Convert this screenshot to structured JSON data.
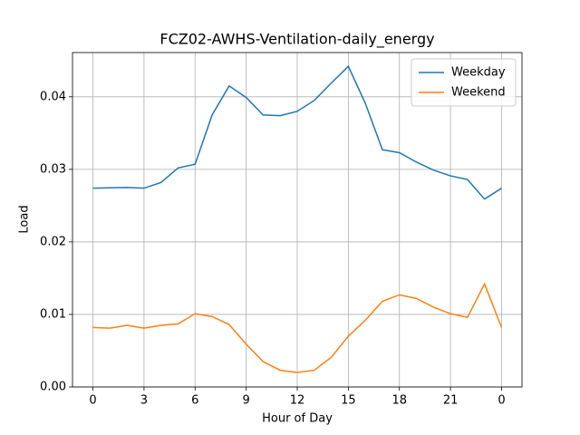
{
  "chart_data": {
    "type": "line",
    "title": "FCZ02-AWHS-Ventilation-daily_energy",
    "x_label": "Hour of Day",
    "y_label": "Load",
    "x": [
      0,
      1,
      2,
      3,
      4,
      5,
      6,
      7,
      8,
      9,
      10,
      11,
      12,
      13,
      14,
      15,
      16,
      17,
      18,
      19,
      20,
      21,
      22,
      23,
      24
    ],
    "series": [
      {
        "name": "Weekday",
        "color": "#1f77b4",
        "values": [
          0.0274,
          0.02745,
          0.0275,
          0.0274,
          0.0282,
          0.0302,
          0.0307,
          0.0375,
          0.0415,
          0.0399,
          0.0375,
          0.0374,
          0.038,
          0.0395,
          0.0419,
          0.0442,
          0.0391,
          0.0327,
          0.0323,
          0.031,
          0.0299,
          0.0291,
          0.0286,
          0.0259,
          0.0274
        ]
      },
      {
        "name": "Weekend",
        "color": "#ff7f0e",
        "values": [
          0.0082,
          0.0081,
          0.0085,
          0.0081,
          0.0085,
          0.0087,
          0.0101,
          0.0097,
          0.0086,
          0.0059,
          0.0035,
          0.0023,
          0.002,
          0.0023,
          0.0041,
          0.007,
          0.0092,
          0.0118,
          0.0127,
          0.0122,
          0.011,
          0.0101,
          0.0096,
          0.0142,
          0.0082
        ]
      }
    ],
    "xlim": [
      -1.2,
      25.2
    ],
    "xticks": [
      0,
      3,
      6,
      9,
      12,
      15,
      18,
      21,
      {
        "value": 24,
        "label": "0"
      }
    ],
    "ylim": [
      0,
      0.0461
    ],
    "yticks": [
      {
        "value": 0,
        "label": "0.00"
      },
      {
        "value": 0.01,
        "label": "0.01"
      },
      {
        "value": 0.02,
        "label": "0.02"
      },
      {
        "value": 0.03,
        "label": "0.03"
      },
      {
        "value": 0.04,
        "label": "0.04"
      }
    ],
    "grid": true,
    "legend": "upper right"
  }
}
